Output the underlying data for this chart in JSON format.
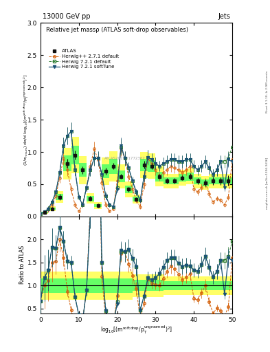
{
  "title_top": "13000 GeV pp",
  "title_right": "Jets",
  "plot_title": "Relative jet massρ (ATLAS soft-drop observables)",
  "xlabel": "log$_{10}$[(m$^{\\mathrm{soft\\,drop}}$/p$_\\mathrm{T}^{\\mathrm{ungroomed}})^2$]",
  "ylabel_main": "(1/σ$_\\mathrm{resum}$) dσ/d log$_{10}$[(m$^{\\mathrm{soft\\,drop}}$/p$_\\mathrm{T}^{\\mathrm{ungroomed}})^2$]",
  "ylabel_ratio": "Ratio to ATLAS",
  "watermark": "ATLAS2019_I1772362",
  "right_label_top": "Rivet 3.1.10, ≥ 2.9M events",
  "right_label_bot": "mcplots.cern.ch [arXiv:1306.3436]",
  "xmin": 0,
  "xmax": 50,
  "ymin_main": 0,
  "ymax_main": 3,
  "ymin_ratio": 0.4,
  "ymax_ratio": 2.5,
  "yticks_main": [
    0,
    0.5,
    1.0,
    1.5,
    2.0,
    2.5,
    3.0
  ],
  "yticks_ratio": [
    0.5,
    1.0,
    1.5,
    2.0
  ],
  "xticks": [
    0,
    10,
    20,
    30,
    40,
    50
  ],
  "x_atlas": [
    1,
    3,
    5,
    7,
    9,
    11,
    13,
    15,
    17,
    19,
    21,
    23,
    25,
    27,
    29,
    31,
    33,
    35,
    37,
    39,
    41,
    43,
    45,
    47,
    49
  ],
  "y_atlas": [
    0.06,
    0.12,
    0.3,
    0.82,
    0.95,
    0.72,
    0.28,
    0.17,
    0.7,
    0.78,
    0.62,
    0.42,
    0.27,
    0.8,
    0.78,
    0.62,
    0.55,
    0.55,
    0.6,
    0.62,
    0.55,
    0.52,
    0.55,
    0.55,
    0.55
  ],
  "y_atlas_errlo": [
    0.02,
    0.03,
    0.05,
    0.07,
    0.07,
    0.06,
    0.04,
    0.03,
    0.05,
    0.05,
    0.04,
    0.04,
    0.03,
    0.06,
    0.05,
    0.04,
    0.04,
    0.04,
    0.04,
    0.05,
    0.05,
    0.05,
    0.06,
    0.06,
    0.07
  ],
  "y_atlas_errhi": [
    0.02,
    0.03,
    0.05,
    0.07,
    0.07,
    0.06,
    0.04,
    0.03,
    0.05,
    0.05,
    0.04,
    0.04,
    0.03,
    0.06,
    0.05,
    0.04,
    0.04,
    0.04,
    0.04,
    0.05,
    0.05,
    0.05,
    0.06,
    0.06,
    0.09
  ],
  "x_mc": [
    0,
    1,
    2,
    3,
    4,
    5,
    6,
    7,
    8,
    9,
    10,
    11,
    12,
    13,
    14,
    15,
    16,
    17,
    18,
    19,
    20,
    21,
    22,
    23,
    24,
    25,
    26,
    27,
    28,
    29,
    30,
    31,
    32,
    33,
    34,
    35,
    36,
    37,
    38,
    39,
    40,
    41,
    42,
    43,
    44,
    45,
    46,
    47,
    48,
    49,
    50
  ],
  "y_hpp": [
    0.04,
    0.06,
    0.1,
    0.18,
    0.32,
    0.6,
    0.9,
    0.72,
    0.42,
    0.18,
    0.08,
    0.18,
    0.45,
    0.78,
    1.05,
    0.88,
    0.52,
    0.18,
    0.08,
    0.12,
    0.55,
    1.05,
    0.9,
    0.62,
    0.42,
    0.25,
    0.15,
    0.5,
    0.9,
    0.82,
    0.72,
    0.62,
    0.68,
    0.72,
    0.78,
    0.75,
    0.72,
    0.68,
    0.72,
    0.78,
    0.42,
    0.38,
    0.45,
    0.52,
    0.35,
    0.22,
    0.28,
    0.25,
    0.18,
    0.3,
    0.88
  ],
  "y_h721d": [
    0.04,
    0.07,
    0.12,
    0.22,
    0.38,
    0.68,
    1.1,
    1.25,
    1.32,
    0.72,
    0.3,
    0.18,
    0.45,
    0.72,
    0.9,
    0.9,
    0.65,
    0.32,
    0.18,
    0.15,
    0.45,
    1.08,
    0.9,
    0.75,
    0.55,
    0.38,
    0.25,
    0.62,
    0.92,
    0.88,
    0.82,
    0.78,
    0.82,
    0.85,
    0.88,
    0.88,
    0.85,
    0.85,
    0.88,
    0.88,
    0.78,
    0.72,
    0.78,
    0.85,
    0.75,
    0.65,
    0.72,
    0.85,
    0.85,
    0.9,
    1.08
  ],
  "y_h721s": [
    0.04,
    0.07,
    0.12,
    0.22,
    0.38,
    0.68,
    1.1,
    1.25,
    1.32,
    0.72,
    0.3,
    0.18,
    0.45,
    0.72,
    0.9,
    0.9,
    0.65,
    0.32,
    0.18,
    0.15,
    0.42,
    1.1,
    0.9,
    0.75,
    0.55,
    0.38,
    0.25,
    0.62,
    0.92,
    0.88,
    0.82,
    0.78,
    0.82,
    0.85,
    0.88,
    0.88,
    0.85,
    0.85,
    0.88,
    0.88,
    0.78,
    0.72,
    0.78,
    0.85,
    0.75,
    0.65,
    0.72,
    0.85,
    0.45,
    0.88,
    0.85
  ],
  "y_hpp_errlo": [
    0.03,
    0.03,
    0.04,
    0.05,
    0.06,
    0.08,
    0.1,
    0.09,
    0.07,
    0.04,
    0.02,
    0.04,
    0.06,
    0.09,
    0.11,
    0.1,
    0.07,
    0.04,
    0.02,
    0.03,
    0.07,
    0.11,
    0.1,
    0.08,
    0.06,
    0.04,
    0.03,
    0.07,
    0.1,
    0.09,
    0.08,
    0.07,
    0.08,
    0.08,
    0.09,
    0.08,
    0.08,
    0.07,
    0.08,
    0.09,
    0.05,
    0.05,
    0.06,
    0.07,
    0.05,
    0.03,
    0.04,
    0.04,
    0.03,
    0.05,
    0.11
  ],
  "y_hpp_errhi": [
    0.03,
    0.03,
    0.04,
    0.05,
    0.06,
    0.08,
    0.1,
    0.09,
    0.07,
    0.04,
    0.02,
    0.04,
    0.06,
    0.09,
    0.11,
    0.1,
    0.07,
    0.04,
    0.02,
    0.03,
    0.07,
    0.11,
    0.1,
    0.08,
    0.06,
    0.04,
    0.03,
    0.07,
    0.1,
    0.09,
    0.08,
    0.07,
    0.08,
    0.08,
    0.09,
    0.08,
    0.08,
    0.07,
    0.08,
    0.09,
    0.05,
    0.05,
    0.06,
    0.07,
    0.05,
    0.03,
    0.04,
    0.04,
    0.03,
    0.05,
    0.2
  ],
  "y_h721d_errlo": [
    0.03,
    0.03,
    0.04,
    0.05,
    0.06,
    0.09,
    0.12,
    0.13,
    0.14,
    0.08,
    0.04,
    0.03,
    0.06,
    0.09,
    0.11,
    0.11,
    0.08,
    0.05,
    0.03,
    0.02,
    0.06,
    0.12,
    0.11,
    0.09,
    0.07,
    0.05,
    0.04,
    0.08,
    0.11,
    0.1,
    0.09,
    0.08,
    0.09,
    0.1,
    0.1,
    0.1,
    0.1,
    0.1,
    0.1,
    0.1,
    0.09,
    0.08,
    0.09,
    0.1,
    0.09,
    0.08,
    0.09,
    0.1,
    0.1,
    0.11,
    0.13
  ],
  "y_h721d_errhi": [
    0.03,
    0.03,
    0.04,
    0.05,
    0.06,
    0.09,
    0.12,
    0.13,
    0.14,
    0.08,
    0.04,
    0.03,
    0.06,
    0.09,
    0.11,
    0.11,
    0.08,
    0.05,
    0.03,
    0.02,
    0.06,
    0.12,
    0.11,
    0.09,
    0.07,
    0.05,
    0.04,
    0.08,
    0.11,
    0.1,
    0.09,
    0.08,
    0.09,
    0.1,
    0.1,
    0.1,
    0.1,
    0.1,
    0.1,
    0.1,
    0.09,
    0.08,
    0.09,
    0.1,
    0.09,
    0.08,
    0.09,
    0.1,
    0.1,
    0.11,
    0.25
  ],
  "y_h721s_errlo": [
    0.03,
    0.03,
    0.04,
    0.05,
    0.06,
    0.09,
    0.12,
    0.13,
    0.14,
    0.08,
    0.04,
    0.03,
    0.06,
    0.09,
    0.11,
    0.11,
    0.08,
    0.05,
    0.03,
    0.02,
    0.05,
    0.12,
    0.11,
    0.09,
    0.07,
    0.05,
    0.04,
    0.08,
    0.11,
    0.1,
    0.09,
    0.08,
    0.09,
    0.1,
    0.1,
    0.1,
    0.1,
    0.1,
    0.1,
    0.1,
    0.09,
    0.08,
    0.09,
    0.1,
    0.09,
    0.08,
    0.09,
    0.1,
    0.06,
    0.11,
    0.12
  ],
  "y_h721s_errhi": [
    0.03,
    0.03,
    0.04,
    0.05,
    0.06,
    0.09,
    0.12,
    0.13,
    0.14,
    0.08,
    0.04,
    0.03,
    0.06,
    0.09,
    0.11,
    0.11,
    0.08,
    0.05,
    0.03,
    0.02,
    0.05,
    0.12,
    0.11,
    0.09,
    0.07,
    0.05,
    0.04,
    0.08,
    0.11,
    0.1,
    0.09,
    0.08,
    0.09,
    0.1,
    0.1,
    0.1,
    0.1,
    0.1,
    0.1,
    0.1,
    0.09,
    0.08,
    0.09,
    0.1,
    0.09,
    0.08,
    0.09,
    0.1,
    0.06,
    0.11,
    0.3
  ],
  "band_yellow_lo": [
    0.7,
    0.7,
    0.7,
    0.7,
    0.7,
    0.7,
    0.7,
    0.7,
    0.7,
    0.7,
    0.7,
    0.7,
    0.75,
    0.75,
    0.75,
    0.75,
    0.8,
    0.8,
    0.8,
    0.8,
    0.8,
    0.8,
    0.8,
    0.8,
    0.8
  ],
  "band_yellow_hi": [
    1.3,
    1.3,
    1.3,
    1.3,
    1.3,
    1.3,
    1.3,
    1.3,
    1.3,
    1.3,
    1.3,
    1.3,
    1.25,
    1.25,
    1.25,
    1.25,
    1.2,
    1.2,
    1.2,
    1.2,
    1.2,
    1.2,
    1.2,
    1.2,
    1.2
  ],
  "band_green_lo": [
    0.85,
    0.85,
    0.85,
    0.85,
    0.85,
    0.85,
    0.85,
    0.85,
    0.85,
    0.85,
    0.85,
    0.85,
    0.88,
    0.88,
    0.88,
    0.88,
    0.9,
    0.9,
    0.9,
    0.9,
    0.9,
    0.9,
    0.9,
    0.9,
    0.9
  ],
  "band_green_hi": [
    1.15,
    1.15,
    1.15,
    1.15,
    1.15,
    1.15,
    1.15,
    1.15,
    1.15,
    1.15,
    1.15,
    1.15,
    1.12,
    1.12,
    1.12,
    1.12,
    1.1,
    1.1,
    1.1,
    1.1,
    1.1,
    1.1,
    1.1,
    1.1,
    1.1
  ],
  "color_atlas": "#111111",
  "color_herwig_pp": "#D4600A",
  "color_herwig721_def": "#2E7D32",
  "color_herwig721_soft": "#1A5276",
  "band_yellow": "#FFFF66",
  "band_green": "#66FF66",
  "figsize": [
    3.93,
    5.12
  ],
  "dpi": 100
}
